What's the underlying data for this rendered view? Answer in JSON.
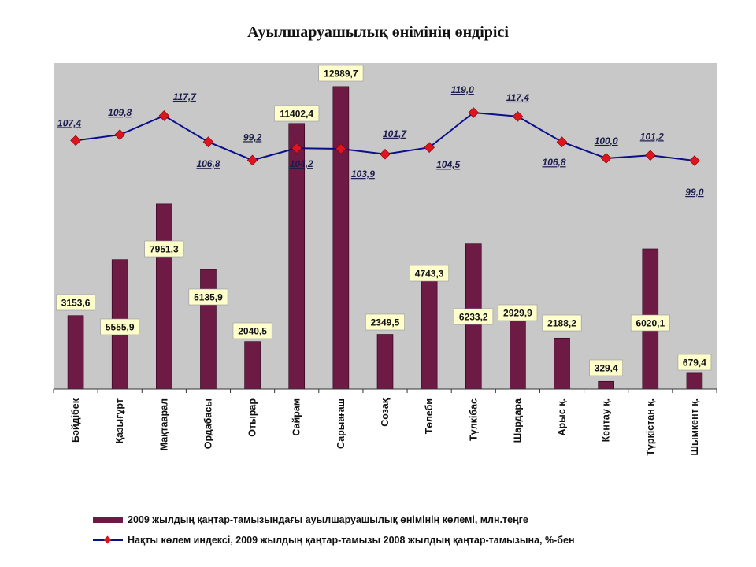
{
  "title": "Ауылшаруашылық өнімінің өндірісі",
  "chart_data": {
    "type": "bar+line",
    "categories": [
      "Бәйдібек",
      "Қазығұрт",
      "Мақтаарал",
      "Ордабасы",
      "Отырар",
      "Сайрам",
      "Сарыағаш",
      "Созақ",
      "Төлеби",
      "Түлкібас",
      "Шардара",
      "Арыс қ.",
      "Кентау қ.",
      "Түркістан қ.",
      "Шымкент қ."
    ],
    "series": [
      {
        "name": "2009 жылдың қаңтар-тамызындағы ауылшаруашылық өнімінің көлемі, млн.теңге",
        "type": "bar",
        "values": [
          3153.6,
          5555.9,
          7951.3,
          5135.9,
          2040.5,
          11402.4,
          12989.7,
          2349.5,
          4743.3,
          6233.2,
          2929.9,
          2188.2,
          329.4,
          6020.1,
          679.4
        ],
        "labels": [
          "3153,6",
          "5555,9",
          "7951,3",
          "5135,9",
          "2040,5",
          "11402,4",
          "12989,7",
          "2349,5",
          "4743,3",
          "6233,2",
          "2929,9",
          "2188,2",
          "329,4",
          "6020,1",
          "679,4"
        ]
      },
      {
        "name": "Нақты көлем индексі, 2009 жылдың қаңтар-тамызы 2008 жылдың қаңтар-тамызына, %-бен",
        "type": "line",
        "values": [
          107.4,
          109.8,
          117.7,
          106.8,
          99.2,
          104.2,
          103.9,
          101.7,
          104.5,
          119.0,
          117.4,
          106.8,
          100.0,
          101.2,
          99.0
        ],
        "labels": [
          "107,4",
          "109,8",
          "117,7",
          "106,8",
          "99,2",
          "104,2",
          "103,9",
          "101,7",
          "104,5",
          "119,0",
          "117,4",
          "106,8",
          "100,0",
          "101,2",
          "99,0"
        ]
      }
    ],
    "colors": {
      "bar": "#6d1b45",
      "line": "#0b0f8a",
      "marker": "#e0141e",
      "plot_bg": "#c8c8c8",
      "label_box": "#ffffcc"
    },
    "grid": false,
    "legend_position": "bottom"
  }
}
